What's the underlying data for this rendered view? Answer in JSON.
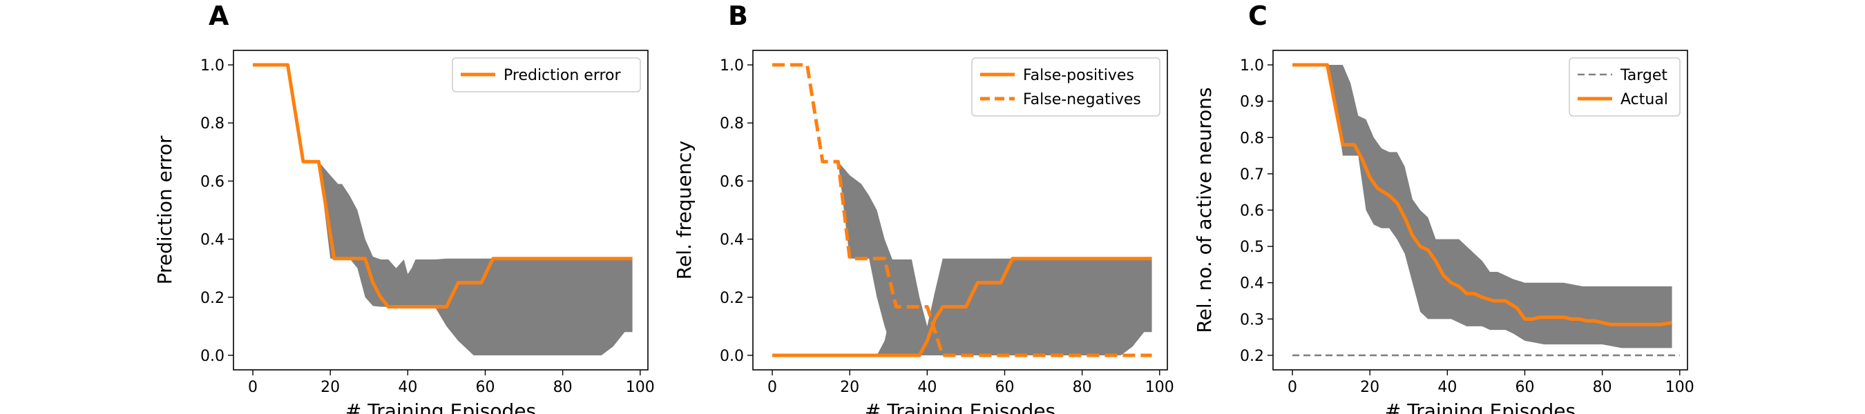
{
  "chart_data": [
    {
      "type": "line",
      "panel_label": "A",
      "xlabel": "# Training Episodes",
      "ylabel": "Prediction error",
      "xlim": [
        -5,
        102
      ],
      "ylim": [
        -0.05,
        1.05
      ],
      "xticks": [
        0,
        20,
        40,
        60,
        80,
        100
      ],
      "yticks": [
        0.0,
        0.2,
        0.4,
        0.6,
        0.8,
        1.0
      ],
      "xtick_labels": [
        "0",
        "20",
        "40",
        "60",
        "80",
        "100"
      ],
      "ytick_labels": [
        "0.0",
        "0.2",
        "0.4",
        "0.6",
        "0.8",
        "1.0"
      ],
      "legend_position": "top-right",
      "band": {
        "color": "#808080",
        "x": [
          0,
          9,
          13,
          17,
          20,
          22,
          23,
          25,
          27,
          29,
          31,
          33,
          35,
          37,
          39,
          40,
          41,
          42,
          43,
          45,
          47,
          50,
          53,
          57,
          60,
          63,
          66,
          70,
          75,
          80,
          85,
          90,
          93,
          96,
          98
        ],
        "upper": [
          1.0,
          1.0,
          0.667,
          0.667,
          0.62,
          0.59,
          0.59,
          0.55,
          0.5,
          0.4,
          0.34,
          0.33,
          0.33,
          0.3,
          0.33,
          0.28,
          0.3,
          0.33,
          0.33,
          0.33,
          0.33,
          0.333,
          0.333,
          0.333,
          0.333,
          0.333,
          0.333,
          0.333,
          0.333,
          0.333,
          0.333,
          0.333,
          0.333,
          0.333,
          0.333
        ],
        "lower": [
          1.0,
          1.0,
          0.667,
          0.667,
          0.333,
          0.333,
          0.333,
          0.333,
          0.3,
          0.2,
          0.17,
          0.167,
          0.167,
          0.167,
          0.167,
          0.167,
          0.167,
          0.167,
          0.167,
          0.167,
          0.167,
          0.1,
          0.05,
          0.0,
          0.0,
          0.0,
          0.0,
          0.0,
          0.0,
          0.0,
          0.0,
          0.0,
          0.03,
          0.08,
          0.08
        ]
      },
      "series": [
        {
          "name": "Prediction error",
          "color": "#ff7f0e",
          "dash": "solid",
          "x": [
            0,
            9,
            13,
            17,
            21,
            29,
            31,
            33,
            35,
            41,
            50,
            53,
            57,
            59,
            62,
            63,
            98
          ],
          "y": [
            1.0,
            1.0,
            0.667,
            0.667,
            0.333,
            0.333,
            0.25,
            0.2,
            0.167,
            0.167,
            0.167,
            0.25,
            0.25,
            0.25,
            0.333,
            0.333,
            0.333
          ]
        }
      ]
    },
    {
      "type": "line",
      "panel_label": "B",
      "xlabel": "# Training Episodes",
      "ylabel": "Rel. frequency",
      "xlim": [
        -5,
        102
      ],
      "ylim": [
        -0.05,
        1.05
      ],
      "xticks": [
        0,
        20,
        40,
        60,
        80,
        100
      ],
      "yticks": [
        0.0,
        0.2,
        0.4,
        0.6,
        0.8,
        1.0
      ],
      "xtick_labels": [
        "0",
        "20",
        "40",
        "60",
        "80",
        "100"
      ],
      "ytick_labels": [
        "0.0",
        "0.2",
        "0.4",
        "0.6",
        "0.8",
        "1.0"
      ],
      "legend_position": "top-right",
      "bands": [
        {
          "color": "#808080",
          "x": [
            12,
            17,
            20,
            23,
            25,
            27,
            29,
            31,
            34,
            36,
            38,
            40,
            42,
            43,
            45
          ],
          "upper": [
            0.667,
            0.667,
            0.62,
            0.59,
            0.55,
            0.5,
            0.4,
            0.33,
            0.33,
            0.33,
            0.2,
            0.0,
            0.0,
            0.0,
            0.0
          ],
          "lower": [
            0.667,
            0.667,
            0.333,
            0.333,
            0.333,
            0.2,
            0.1,
            0.02,
            0.0,
            0.0,
            0.0,
            0.0,
            0.0,
            0.0,
            0.0
          ]
        },
        {
          "color": "#808080",
          "x": [
            27,
            29,
            31,
            33,
            35,
            38,
            40,
            42,
            44,
            46,
            50,
            60,
            70,
            80,
            85,
            90,
            93,
            96,
            98
          ],
          "upper": [
            0.0,
            0.05,
            0.17,
            0.2,
            0.25,
            0.2,
            0.1,
            0.22,
            0.333,
            0.333,
            0.333,
            0.333,
            0.333,
            0.333,
            0.333,
            0.333,
            0.333,
            0.333,
            0.333
          ],
          "lower": [
            0.0,
            0.0,
            0.0,
            0.0,
            0.0,
            0.0,
            0.0,
            0.0,
            0.0,
            0.0,
            0.0,
            0.0,
            0.0,
            0.0,
            0.0,
            0.0,
            0.03,
            0.08,
            0.08
          ]
        }
      ],
      "series": [
        {
          "name": "False-positives",
          "color": "#ff7f0e",
          "dash": "solid",
          "x": [
            0,
            38,
            40,
            42,
            44,
            48,
            50,
            53,
            57,
            59,
            62,
            63,
            98
          ],
          "y": [
            0.0,
            0.0,
            0.05,
            0.125,
            0.167,
            0.167,
            0.167,
            0.25,
            0.25,
            0.25,
            0.333,
            0.333,
            0.333
          ]
        },
        {
          "name": "False-negatives",
          "color": "#ff7f0e",
          "dash": "dashed",
          "x": [
            0,
            9,
            13,
            17,
            20,
            29,
            32,
            37,
            40,
            42,
            44,
            98
          ],
          "y": [
            1.0,
            1.0,
            0.667,
            0.667,
            0.333,
            0.333,
            0.167,
            0.167,
            0.167,
            0.083,
            0.0,
            0.0
          ]
        }
      ]
    },
    {
      "type": "line",
      "panel_label": "C",
      "xlabel": "# Training Episodes",
      "ylabel": "Rel. no. of active neurons",
      "xlim": [
        -5,
        102
      ],
      "ylim": [
        0.16,
        1.04
      ],
      "xticks": [
        0,
        20,
        40,
        60,
        80,
        100
      ],
      "yticks": [
        0.2,
        0.3,
        0.4,
        0.5,
        0.6,
        0.7,
        0.8,
        0.9,
        1.0
      ],
      "xtick_labels": [
        "0",
        "20",
        "40",
        "60",
        "80",
        "100"
      ],
      "ytick_labels": [
        "0.2",
        "0.3",
        "0.4",
        "0.5",
        "0.6",
        "0.7",
        "0.8",
        "0.9",
        "1.0"
      ],
      "legend_position": "top-right",
      "band": {
        "color": "#808080",
        "x": [
          0,
          9,
          11,
          13,
          15,
          17,
          19,
          21,
          23,
          25,
          27,
          29,
          31,
          33,
          35,
          37,
          39,
          41,
          43,
          45,
          47,
          49,
          51,
          53,
          55,
          57,
          60,
          65,
          70,
          75,
          80,
          85,
          90,
          95,
          98
        ],
        "upper": [
          1.0,
          1.0,
          1.0,
          1.0,
          0.95,
          0.86,
          0.85,
          0.8,
          0.77,
          0.76,
          0.76,
          0.72,
          0.63,
          0.6,
          0.58,
          0.52,
          0.52,
          0.52,
          0.52,
          0.5,
          0.48,
          0.46,
          0.43,
          0.43,
          0.42,
          0.41,
          0.4,
          0.4,
          0.4,
          0.39,
          0.39,
          0.39,
          0.39,
          0.39,
          0.39
        ],
        "lower": [
          1.0,
          1.0,
          0.9,
          0.75,
          0.75,
          0.75,
          0.6,
          0.56,
          0.55,
          0.55,
          0.52,
          0.48,
          0.4,
          0.32,
          0.3,
          0.3,
          0.3,
          0.3,
          0.29,
          0.28,
          0.28,
          0.28,
          0.27,
          0.27,
          0.27,
          0.26,
          0.24,
          0.23,
          0.23,
          0.23,
          0.23,
          0.22,
          0.22,
          0.22,
          0.22
        ]
      },
      "series": [
        {
          "name": "Target",
          "color": "#808080",
          "dash": "dashed",
          "x": [
            0,
            100
          ],
          "y": [
            0.2,
            0.2
          ]
        },
        {
          "name": "Actual",
          "color": "#ff7f0e",
          "dash": "solid",
          "x": [
            0,
            9,
            13,
            16,
            18,
            20,
            22,
            25,
            27,
            29,
            31,
            33,
            35,
            37,
            39,
            41,
            43,
            45,
            47,
            49,
            52,
            55,
            58,
            60,
            62,
            64,
            66,
            70,
            72,
            74,
            76,
            78,
            80,
            82,
            85,
            90,
            95,
            98
          ],
          "y": [
            1.0,
            1.0,
            0.78,
            0.78,
            0.74,
            0.69,
            0.66,
            0.64,
            0.62,
            0.58,
            0.53,
            0.5,
            0.49,
            0.46,
            0.42,
            0.4,
            0.39,
            0.37,
            0.37,
            0.36,
            0.35,
            0.35,
            0.33,
            0.3,
            0.3,
            0.305,
            0.305,
            0.305,
            0.3,
            0.3,
            0.295,
            0.295,
            0.29,
            0.285,
            0.285,
            0.285,
            0.285,
            0.29
          ]
        }
      ]
    }
  ]
}
